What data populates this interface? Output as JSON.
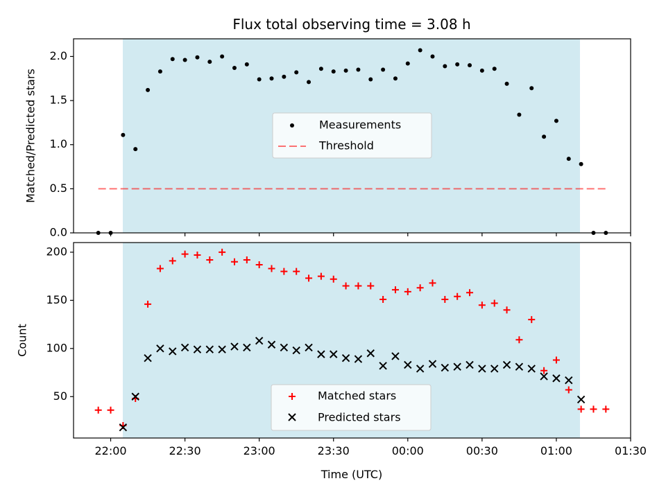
{
  "chart_data": [
    {
      "type": "scatter",
      "panel": "top",
      "title": "Flux total observing time = 3.08 h",
      "ylabel": "Matched/Predicted stars",
      "xlabel": "",
      "ylim": [
        0,
        2.2
      ],
      "yticks": [
        0,
        0.5,
        1.0,
        1.5,
        2.0
      ],
      "ytick_labels": [
        "0.0",
        "0.5",
        "1.0",
        "1.5",
        "2.0"
      ],
      "observing_window_minutes": [
        5,
        190
      ],
      "shade_color": "#add8e6",
      "legend": {
        "placement": "center",
        "entries": [
          "Measurements",
          "Threshold"
        ]
      },
      "threshold": {
        "name": "Threshold",
        "value": 0.5,
        "x_range_minutes": [
          -5,
          200
        ],
        "color": "#ff0000"
      },
      "series": [
        {
          "name": "Measurements",
          "color": "#000000",
          "marker": "dot",
          "x_minutes": [
            -5,
            0,
            5,
            10,
            15,
            20,
            25,
            30,
            35,
            40,
            45,
            50,
            55,
            60,
            65,
            70,
            75,
            80,
            85,
            90,
            95,
            100,
            105,
            110,
            115,
            120,
            125,
            130,
            135,
            140,
            145,
            150,
            155,
            160,
            165,
            170,
            175,
            180,
            185,
            190,
            195,
            200
          ],
          "values": [
            0,
            0,
            1.11,
            0.95,
            1.62,
            1.83,
            1.97,
            1.96,
            1.99,
            1.94,
            2.0,
            1.87,
            1.91,
            1.74,
            1.75,
            1.77,
            1.82,
            1.71,
            1.86,
            1.83,
            1.84,
            1.85,
            1.74,
            1.85,
            1.75,
            1.92,
            2.07,
            2.0,
            1.89,
            1.91,
            1.9,
            1.84,
            1.86,
            1.69,
            1.34,
            1.64,
            1.09,
            1.27,
            0.84,
            0.78,
            0,
            0
          ]
        }
      ]
    },
    {
      "type": "scatter",
      "panel": "bottom",
      "title": "",
      "xlabel": "Time (UTC)",
      "ylabel": "Count",
      "ylim": [
        7,
        210
      ],
      "yticks": [
        50,
        100,
        150,
        200
      ],
      "ytick_labels": [
        "50",
        "100",
        "150",
        "200"
      ],
      "xlim_minutes": [
        -15,
        210
      ],
      "xticks_minutes": [
        0,
        30,
        60,
        90,
        120,
        150,
        180,
        210
      ],
      "xtick_labels": [
        "22:00",
        "22:30",
        "23:00",
        "23:30",
        "00:00",
        "00:30",
        "01:00",
        "01:30"
      ],
      "observing_window_minutes": [
        5,
        190
      ],
      "shade_color": "#add8e6",
      "legend": {
        "placement": "lower center",
        "entries": [
          "Matched stars",
          "Predicted stars"
        ]
      },
      "series": [
        {
          "name": "Matched stars",
          "color": "#ff0000",
          "marker": "plus",
          "x_minutes": [
            -5,
            0,
            5,
            10,
            15,
            20,
            25,
            30,
            35,
            40,
            45,
            50,
            55,
            60,
            65,
            70,
            75,
            80,
            85,
            90,
            95,
            100,
            105,
            110,
            115,
            120,
            125,
            130,
            135,
            140,
            145,
            150,
            155,
            160,
            165,
            170,
            175,
            180,
            185,
            190,
            195,
            200
          ],
          "values": [
            36,
            36,
            20,
            48,
            146,
            183,
            191,
            198,
            197,
            192,
            200,
            190,
            192,
            187,
            183,
            180,
            180,
            173,
            175,
            172,
            165,
            165,
            165,
            151,
            161,
            159,
            163,
            168,
            151,
            154,
            158,
            145,
            147,
            140,
            109,
            130,
            77,
            88,
            57,
            37,
            37,
            37
          ]
        },
        {
          "name": "Predicted stars",
          "color": "#000000",
          "marker": "x",
          "x_minutes": [
            5,
            10,
            15,
            20,
            25,
            30,
            35,
            40,
            45,
            50,
            55,
            60,
            65,
            70,
            75,
            80,
            85,
            90,
            95,
            100,
            105,
            110,
            115,
            120,
            125,
            130,
            135,
            140,
            145,
            150,
            155,
            160,
            165,
            170,
            175,
            180,
            185,
            190
          ],
          "values": [
            18,
            50,
            90,
            100,
            97,
            101,
            99,
            99,
            99,
            102,
            101,
            108,
            104,
            101,
            98,
            101,
            94,
            94,
            90,
            89,
            95,
            82,
            92,
            83,
            79,
            84,
            80,
            81,
            83,
            79,
            79,
            83,
            81,
            79,
            71,
            69,
            67,
            47
          ]
        }
      ]
    }
  ]
}
